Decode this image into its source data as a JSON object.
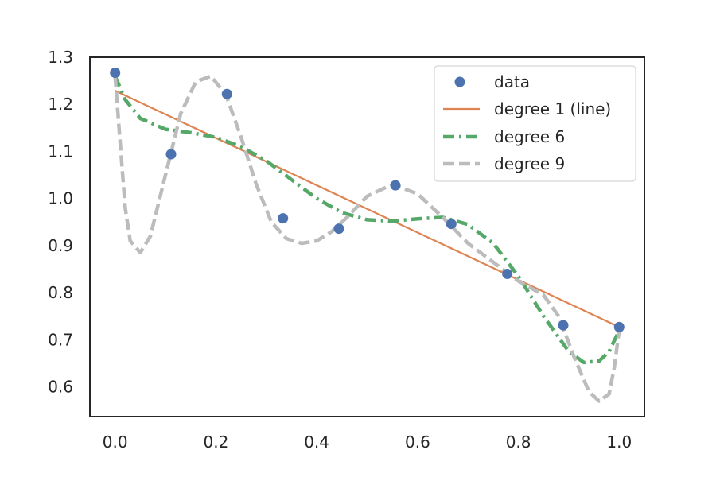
{
  "chart_data": {
    "type": "line",
    "title": "",
    "xlabel": "",
    "ylabel": "",
    "xlim": [
      -0.05,
      1.05
    ],
    "ylim": [
      0.537,
      1.3
    ],
    "xticks": [
      0.0,
      0.2,
      0.4,
      0.6,
      0.8,
      1.0
    ],
    "xtick_labels": [
      "0.0",
      "0.2",
      "0.4",
      "0.6",
      "0.8",
      "1.0"
    ],
    "yticks": [
      0.6,
      0.7,
      0.8,
      0.9,
      1.0,
      1.1,
      1.2,
      1.3
    ],
    "ytick_labels": [
      "0.6",
      "0.7",
      "0.8",
      "0.9",
      "1.0",
      "1.1",
      "1.2",
      "1.3"
    ],
    "grid": false,
    "legend_position": "top-right",
    "series": [
      {
        "name": "data",
        "kind": "scatter",
        "color": "#4c72b0",
        "x": [
          0.0,
          0.111,
          0.222,
          0.333,
          0.444,
          0.556,
          0.667,
          0.778,
          0.889,
          1.0
        ],
        "y": [
          1.267,
          1.094,
          1.222,
          0.958,
          0.936,
          1.028,
          0.946,
          0.84,
          0.731,
          0.727
        ]
      },
      {
        "name": "degree 1 (line)",
        "kind": "line",
        "color": "#dd8452",
        "dash": "solid",
        "x": [
          0.0,
          1.0
        ],
        "y": [
          1.229,
          0.727
        ]
      },
      {
        "name": "degree 6",
        "kind": "line",
        "color": "#55a868",
        "dash": "dashdot",
        "x": [
          0.0,
          0.02,
          0.05,
          0.1,
          0.15,
          0.2,
          0.25,
          0.3,
          0.35,
          0.4,
          0.45,
          0.5,
          0.55,
          0.6,
          0.65,
          0.7,
          0.75,
          0.8,
          0.85,
          0.9,
          0.93,
          0.96,
          0.98,
          1.0
        ],
        "y": [
          1.26,
          1.21,
          1.17,
          1.147,
          1.14,
          1.13,
          1.11,
          1.08,
          1.04,
          1.0,
          0.97,
          0.955,
          0.952,
          0.957,
          0.96,
          0.945,
          0.905,
          0.835,
          0.75,
          0.675,
          0.652,
          0.655,
          0.675,
          0.72
        ]
      },
      {
        "name": "degree 9",
        "kind": "line",
        "color": "#bcbcbc",
        "dash": "dashed",
        "x": [
          0.0,
          0.01,
          0.02,
          0.03,
          0.05,
          0.07,
          0.1,
          0.13,
          0.16,
          0.19,
          0.22,
          0.25,
          0.28,
          0.31,
          0.34,
          0.37,
          0.4,
          0.43,
          0.46,
          0.5,
          0.55,
          0.6,
          0.65,
          0.7,
          0.75,
          0.8,
          0.85,
          0.88,
          0.91,
          0.94,
          0.96,
          0.98,
          0.99,
          1.0
        ],
        "y": [
          1.26,
          1.12,
          0.98,
          0.91,
          0.885,
          0.92,
          1.05,
          1.18,
          1.248,
          1.26,
          1.22,
          1.13,
          1.03,
          0.95,
          0.915,
          0.905,
          0.91,
          0.93,
          0.96,
          1.005,
          1.03,
          1.01,
          0.96,
          0.905,
          0.865,
          0.825,
          0.795,
          0.75,
          0.665,
          0.59,
          0.57,
          0.585,
          0.64,
          0.72
        ]
      }
    ]
  }
}
